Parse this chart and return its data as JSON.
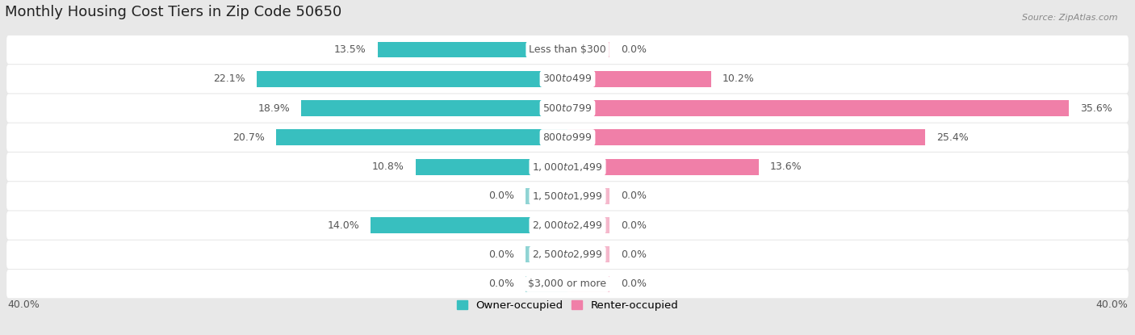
{
  "title": "Monthly Housing Cost Tiers in Zip Code 50650",
  "source": "Source: ZipAtlas.com",
  "categories": [
    "Less than $300",
    "$300 to $499",
    "$500 to $799",
    "$800 to $999",
    "$1,000 to $1,499",
    "$1,500 to $1,999",
    "$2,000 to $2,499",
    "$2,500 to $2,999",
    "$3,000 or more"
  ],
  "owner_values": [
    13.5,
    22.1,
    18.9,
    20.7,
    10.8,
    0.0,
    14.0,
    0.0,
    0.0
  ],
  "renter_values": [
    0.0,
    10.2,
    35.6,
    25.4,
    13.6,
    0.0,
    0.0,
    0.0,
    0.0
  ],
  "owner_color": "#38bfbf",
  "renter_color": "#f07fa8",
  "owner_color_zero": "#90d4d4",
  "renter_color_zero": "#f5b8cc",
  "bg_color": "#e8e8e8",
  "row_bg": "#ffffff",
  "text_color": "#555555",
  "axis_label": "40.0%",
  "xlim": 40.0,
  "bar_height": 0.55,
  "stub_size": 3.0,
  "title_fontsize": 13,
  "label_fontsize": 9,
  "category_fontsize": 9
}
